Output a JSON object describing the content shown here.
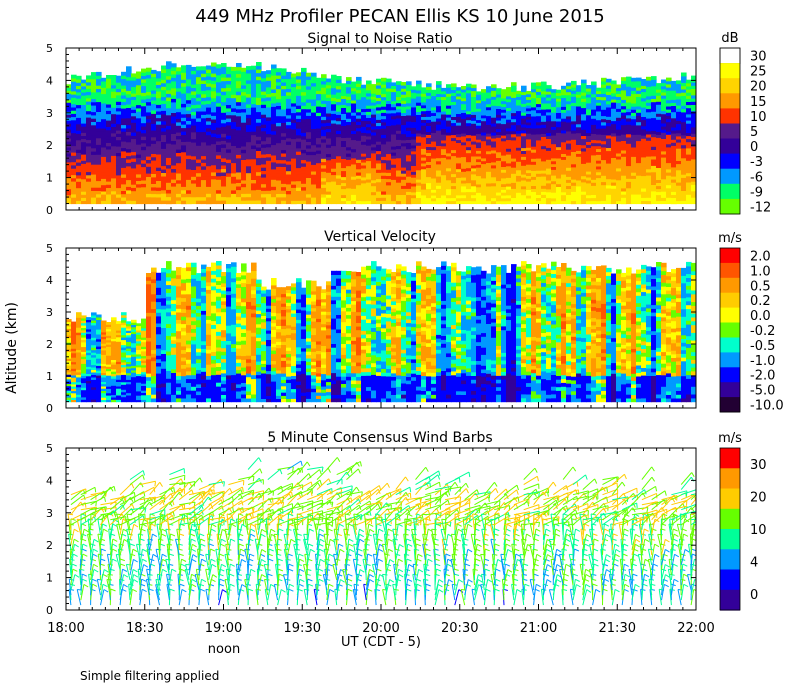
{
  "figure": {
    "title": "449 MHz Profiler PECAN Ellis KS 10 June 2015",
    "ylabel": "Altitude (km)",
    "xlabel": "UT  (CDT - 5)",
    "noon_label": "noon",
    "footnote": "Simple filtering applied",
    "x_ticks": [
      "18:00",
      "18:30",
      "19:00",
      "19:30",
      "20:00",
      "20:30",
      "21:00",
      "21:30",
      "22:00"
    ],
    "y_ticks": [
      "0",
      "1",
      "2",
      "3",
      "4",
      "5"
    ]
  },
  "chart_data": [
    {
      "type": "heatmap",
      "title": "Signal to Noise Ratio",
      "xlabel": "UT  (CDT - 5)",
      "ylabel": "Altitude (km)",
      "x_range": [
        "18:00",
        "22:00"
      ],
      "ylim": [
        0,
        5
      ],
      "colorbar": {
        "unit": "dB",
        "levels": [
          "30",
          "25",
          "20",
          "15",
          "10",
          "5",
          "0",
          "-3",
          "-6",
          "-9",
          "-12"
        ],
        "colors": [
          "#ffffff",
          "#ffff00",
          "#ffd400",
          "#ff9900",
          "#ff3300",
          "#551a8b",
          "#330099",
          "#0000ff",
          "#0099ff",
          "#00ff66",
          "#66ff00"
        ]
      },
      "layers": [
        {
          "bottom_km": 0.2,
          "top_km": 1.0,
          "value_db": 18
        },
        {
          "bottom_km": 1.0,
          "top_km": 2.0,
          "value_db": 8
        },
        {
          "bottom_km": 2.0,
          "top_km": 2.8,
          "value_db": 2
        },
        {
          "bottom_km": 2.8,
          "top_km": 3.6,
          "value_db": -4
        },
        {
          "bottom_km": 3.6,
          "top_km": 4.3,
          "value_db": -10
        }
      ]
    },
    {
      "type": "heatmap",
      "title": "Vertical Velocity",
      "xlabel": "UT  (CDT - 5)",
      "ylabel": "Altitude (km)",
      "x_range": [
        "18:00",
        "22:00"
      ],
      "ylim": [
        0,
        5
      ],
      "colorbar": {
        "unit": "m/s",
        "levels": [
          "2.0",
          "1.0",
          "0.5",
          "0.2",
          "0.0",
          "-0.2",
          "-0.5",
          "-1.0",
          "-2.0",
          "-5.0",
          "-10.0"
        ],
        "colors": [
          "#ff0000",
          "#ff5500",
          "#ff9900",
          "#ffcc00",
          "#ffff00",
          "#66ff00",
          "#00ffcc",
          "#0099ff",
          "#0000ff",
          "#330099",
          "#220033"
        ]
      },
      "data_top_km": 4.4
    },
    {
      "type": "scatter",
      "title": "5 Minute Consensus Wind Barbs",
      "xlabel": "UT  (CDT - 5)",
      "ylabel": "Altitude (km)",
      "x_range": [
        "18:00",
        "22:00"
      ],
      "ylim": [
        0,
        5
      ],
      "colorbar": {
        "unit": "m/s",
        "levels": [
          "30",
          "20",
          "10",
          "4",
          "0"
        ],
        "colors": [
          "#ff0000",
          "#ff9900",
          "#ffcc00",
          "#66ff00",
          "#00ff99",
          "#0099ff",
          "#0000ff",
          "#330099"
        ]
      },
      "speed_profile_ms": [
        {
          "altitude_km": 0.5,
          "speed": 8
        },
        {
          "altitude_km": 1.5,
          "speed": 10
        },
        {
          "altitude_km": 2.5,
          "speed": 12
        },
        {
          "altitude_km": 3.3,
          "speed": 14
        },
        {
          "altitude_km": 4.2,
          "speed": 10
        }
      ]
    }
  ]
}
